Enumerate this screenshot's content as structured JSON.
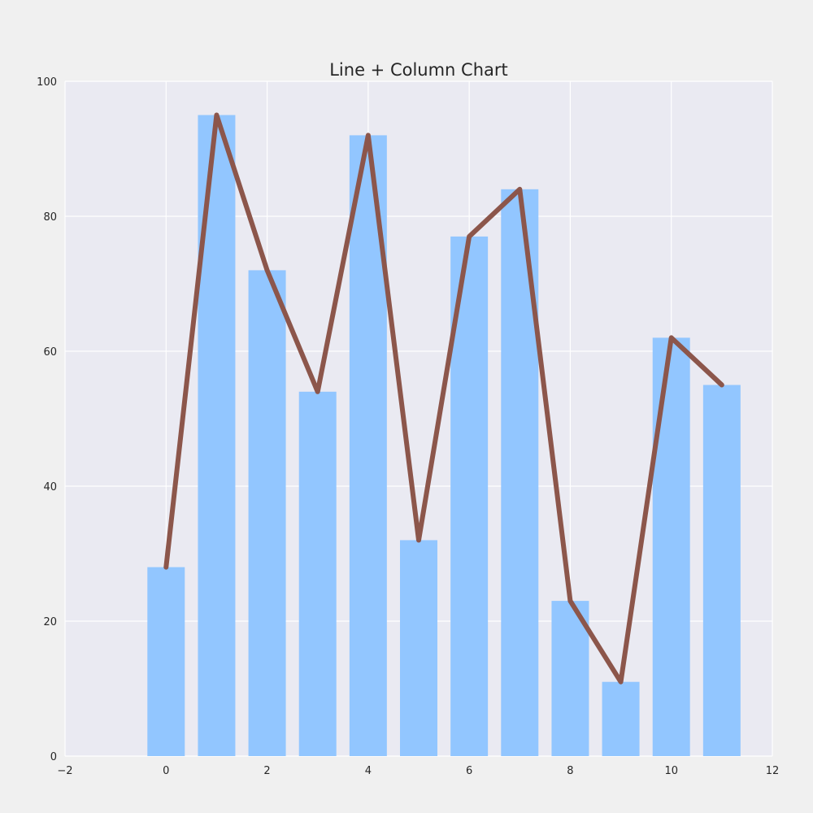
{
  "chart_data": {
    "type": "bar",
    "title": "Line + Column Chart",
    "xlabel": "",
    "ylabel": "",
    "xlim": [
      -2,
      12
    ],
    "ylim": [
      0,
      100
    ],
    "x_ticks": [
      -2,
      0,
      2,
      4,
      6,
      8,
      10,
      12
    ],
    "x_tick_labels": [
      "−2",
      "0",
      "2",
      "4",
      "6",
      "8",
      "10",
      "12"
    ],
    "y_ticks": [
      0,
      20,
      40,
      60,
      80,
      100
    ],
    "y_tick_labels": [
      "0",
      "20",
      "40",
      "60",
      "80",
      "100"
    ],
    "grid": true,
    "x": [
      0,
      1,
      2,
      3,
      4,
      5,
      6,
      7,
      8,
      9,
      10,
      11
    ],
    "series": [
      {
        "type": "bar",
        "values": [
          28,
          95,
          72,
          54,
          92,
          32,
          77,
          84,
          23,
          11,
          62,
          55
        ],
        "color": "#92c6ff"
      },
      {
        "type": "line",
        "values": [
          28,
          95,
          72,
          54,
          92,
          32,
          77,
          84,
          23,
          11,
          62,
          55
        ],
        "color": "#8c564b"
      }
    ],
    "colors": {
      "background": "#f0f0f0",
      "plot_background": "#eaeaf2",
      "grid": "#ffffff",
      "text": "#262626"
    }
  }
}
